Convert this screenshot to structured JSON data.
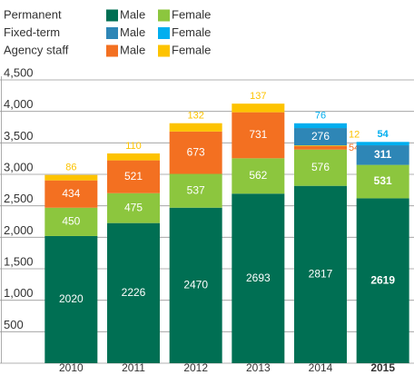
{
  "chart_data": {
    "type": "stacked_bar",
    "categories": [
      "2010",
      "2011",
      "2012",
      "2013",
      "2014",
      "2015"
    ],
    "series": [
      {
        "name": "Male",
        "group": "Permanent",
        "color": "#006f53",
        "values": [
          2020,
          2226,
          2470,
          2693,
          2817,
          2619
        ]
      },
      {
        "name": "Female",
        "group": "Permanent",
        "color": "#8cc63e",
        "values": [
          450,
          475,
          537,
          562,
          576,
          531
        ]
      },
      {
        "name": "Male",
        "group": "Agency staff",
        "color": "#f37021",
        "values": [
          434,
          521,
          673,
          731,
          54,
          null
        ]
      },
      {
        "name": "Female",
        "group": "Agency staff",
        "color": "#fdc300",
        "values": [
          86,
          110,
          132,
          137,
          12,
          null
        ]
      },
      {
        "name": "Male",
        "group": "Fixed-term",
        "color": "#2e86b6",
        "values": [
          null,
          null,
          null,
          null,
          276,
          311
        ]
      },
      {
        "name": "Female",
        "group": "Fixed-term",
        "color": "#00aeef",
        "values": [
          null,
          null,
          null,
          null,
          76,
          54
        ]
      }
    ],
    "legend_order": [
      "Permanent",
      "Fixed-term",
      "Agency staff"
    ],
    "ylim": [
      0,
      4500
    ],
    "yticks": [
      {
        "value": 500,
        "label": "500"
      },
      {
        "value": 1000,
        "label": "1,000"
      },
      {
        "value": 1500,
        "label": "1,500"
      },
      {
        "value": 2000,
        "label": "2,000"
      },
      {
        "value": 2500,
        "label": "2,500"
      },
      {
        "value": 3000,
        "label": "3,000"
      },
      {
        "value": 3500,
        "label": "3,500"
      },
      {
        "value": 4000,
        "label": "4,000"
      },
      {
        "value": 4500,
        "label": "4,500"
      }
    ],
    "grid": true,
    "bold_last": true
  }
}
